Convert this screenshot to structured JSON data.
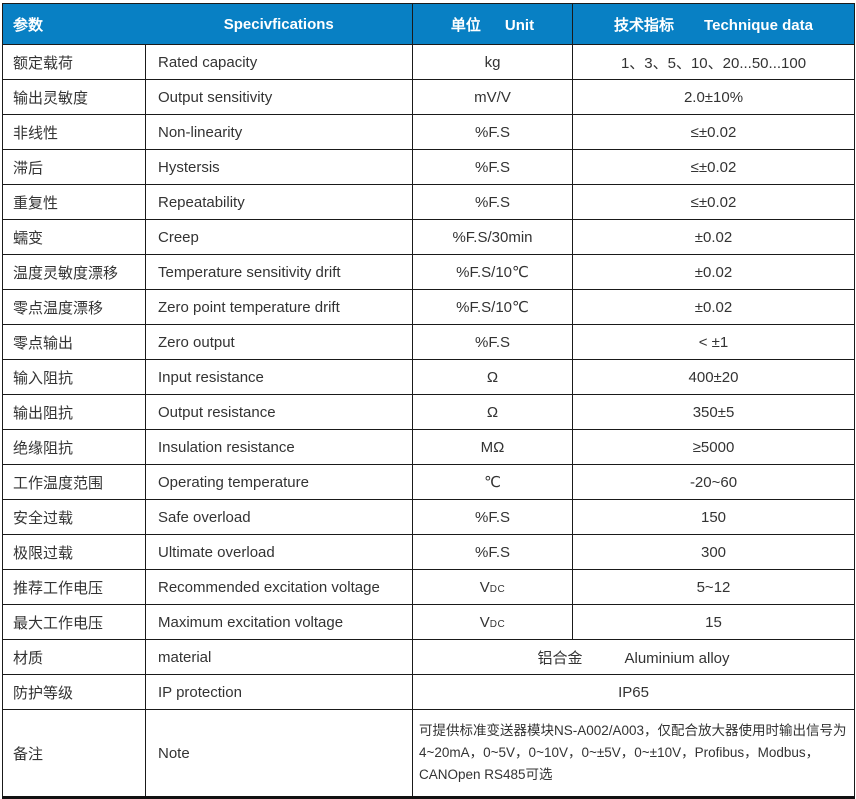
{
  "colors": {
    "header_bg": "#0880C4",
    "header_text": "#ffffff",
    "body_text": "#333333",
    "border": "#1a1a1a"
  },
  "header": {
    "param_cn": "参数",
    "spec_en": "Specivfications",
    "unit_cn": "单位",
    "unit_en": "Unit",
    "tech_cn": "技术指标",
    "tech_en": "Technique data"
  },
  "rows": [
    {
      "cn": "额定载荷",
      "en": "Rated capacity",
      "unit": "kg",
      "value": "1、3、5、10、20...50...100"
    },
    {
      "cn": "输出灵敏度",
      "en": "Output sensitivity",
      "unit": "mV/V",
      "value": "2.0±10%"
    },
    {
      "cn": "非线性",
      "en": "Non-linearity",
      "unit": "%F.S",
      "value": "≤±0.02"
    },
    {
      "cn": "滞后",
      "en": "Hystersis",
      "unit": "%F.S",
      "value": "≤±0.02"
    },
    {
      "cn": "重复性",
      "en": "Repeatability",
      "unit": "%F.S",
      "value": "≤±0.02"
    },
    {
      "cn": "蠕变",
      "en": "Creep",
      "unit": "%F.S/30min",
      "value": "±0.02"
    },
    {
      "cn": "温度灵敏度漂移",
      "en": "Temperature sensitivity drift",
      "unit": "%F.S/10℃",
      "value": "±0.02"
    },
    {
      "cn": "零点温度漂移",
      "en": "Zero point temperature drift",
      "unit": "%F.S/10℃",
      "value": "±0.02"
    },
    {
      "cn": "零点输出",
      "en": "Zero output",
      "unit": "%F.S",
      "value": "< ±1"
    },
    {
      "cn": "输入阻抗",
      "en": "Input resistance",
      "unit": "Ω",
      "value": "400±20"
    },
    {
      "cn": "输出阻抗",
      "en": "Output resistance",
      "unit": "Ω",
      "value": "350±5"
    },
    {
      "cn": "绝缘阻抗",
      "en": "Insulation resistance",
      "unit": "MΩ",
      "value": "≥5000"
    },
    {
      "cn": "工作温度范围",
      "en": "Operating temperature",
      "unit": "℃",
      "value": "-20~60"
    },
    {
      "cn": "安全过载",
      "en": "Safe overload",
      "unit": "%F.S",
      "value": "150"
    },
    {
      "cn": "极限过载",
      "en": "Ultimate overload",
      "unit": "%F.S",
      "value": "300"
    },
    {
      "cn": "推荐工作电压",
      "en": "Recommended excitation voltage",
      "unit": "V",
      "unit_sub": "DC",
      "value": "5~12"
    },
    {
      "cn": "最大工作电压",
      "en": "Maximum excitation voltage",
      "unit": "V",
      "unit_sub": "DC",
      "value": "15"
    },
    {
      "cn": "材质",
      "en": "material",
      "merged": true,
      "merged_cn": "铝合金",
      "merged_en": "Aluminium alloy"
    },
    {
      "cn": "防护等级",
      "en": "IP protection",
      "merged": true,
      "merged_text": "IP65"
    },
    {
      "cn": "备注",
      "en": "Note",
      "merged": true,
      "note": true,
      "merged_text": "可提供标准变送器模块NS-A002/A003，仅配合放大器使用时输出信号为4~20mA，0~5V，0~10V，0~±5V，0~±10V，Profibus，Modbus，CANOpen RS485可选"
    }
  ]
}
